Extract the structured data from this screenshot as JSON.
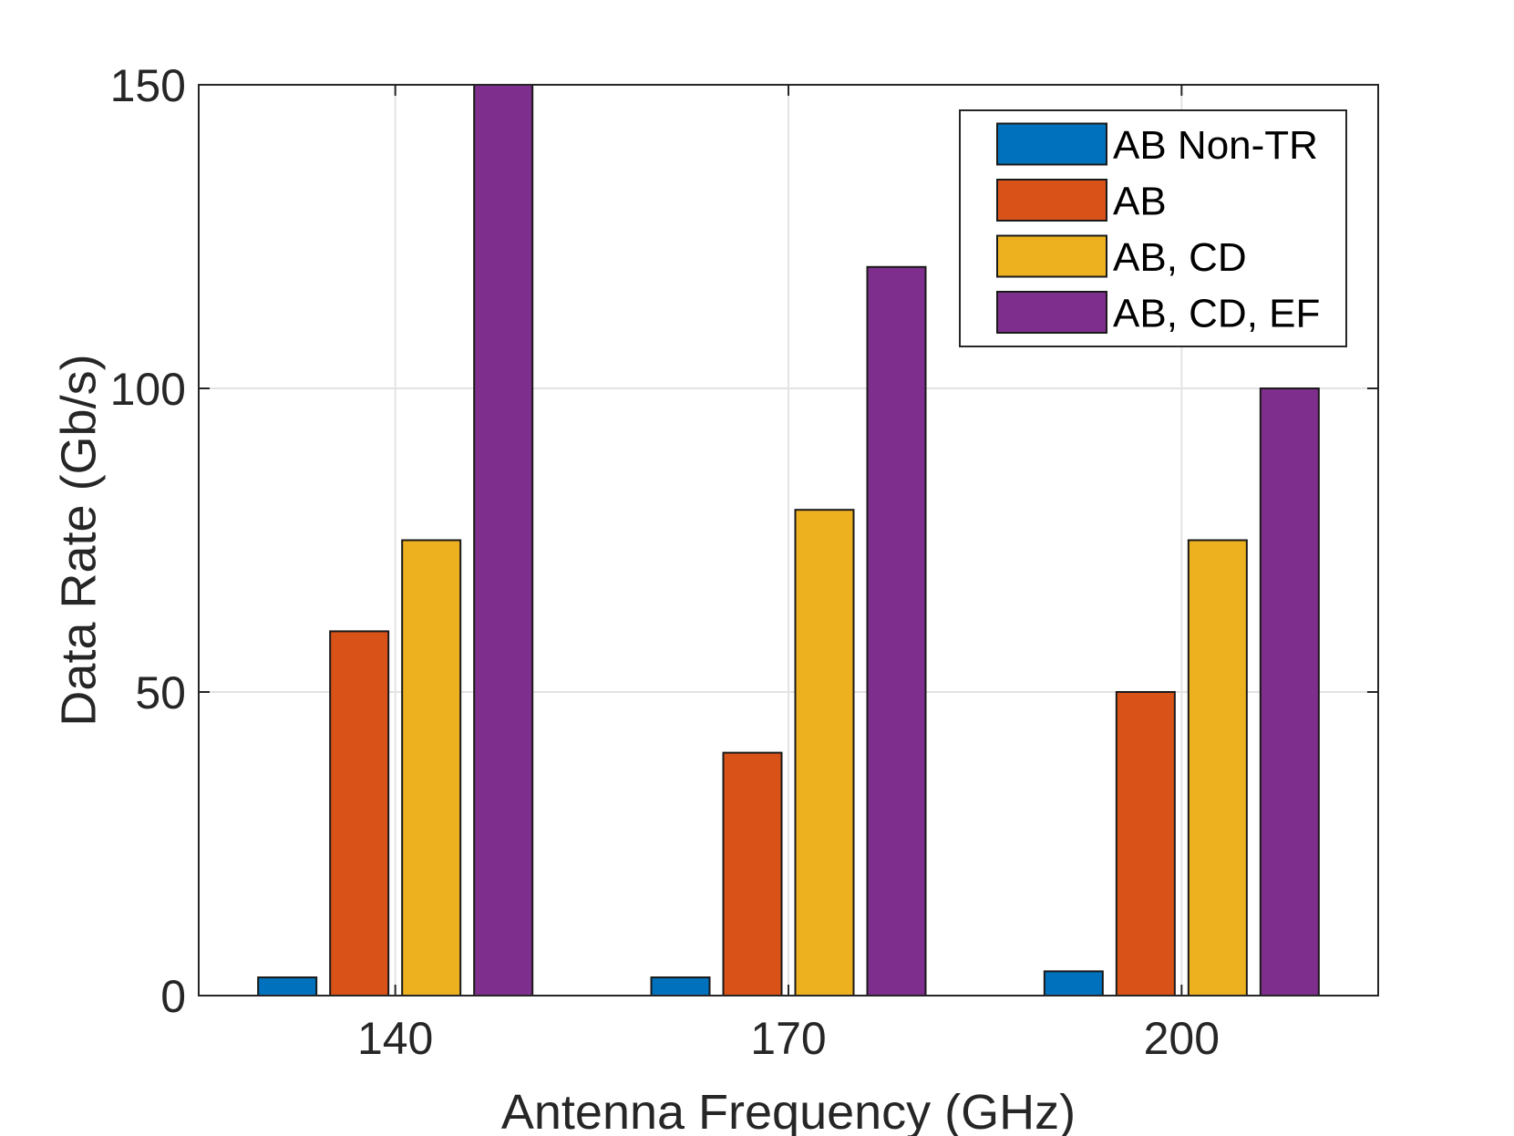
{
  "chart_data": {
    "type": "bar",
    "title": "",
    "xlabel": "Antenna Frequency (GHz)",
    "ylabel": "Data Rate (Gb/s)",
    "categories": [
      "140",
      "170",
      "200"
    ],
    "ylim": [
      0,
      150
    ],
    "yticks": [
      "0",
      "50",
      "100",
      "150"
    ],
    "grid": true,
    "legend_position": "top-right",
    "series": [
      {
        "name": "AB Non-TR",
        "color": "#0072BD",
        "values": [
          3,
          3,
          4
        ]
      },
      {
        "name": "AB",
        "color": "#D95319",
        "values": [
          60,
          40,
          50
        ]
      },
      {
        "name": "AB, CD",
        "color": "#EDB120",
        "values": [
          75,
          80,
          75
        ]
      },
      {
        "name": "AB, CD, EF",
        "color": "#7E2F8E",
        "values": [
          150,
          120,
          100
        ]
      }
    ]
  }
}
